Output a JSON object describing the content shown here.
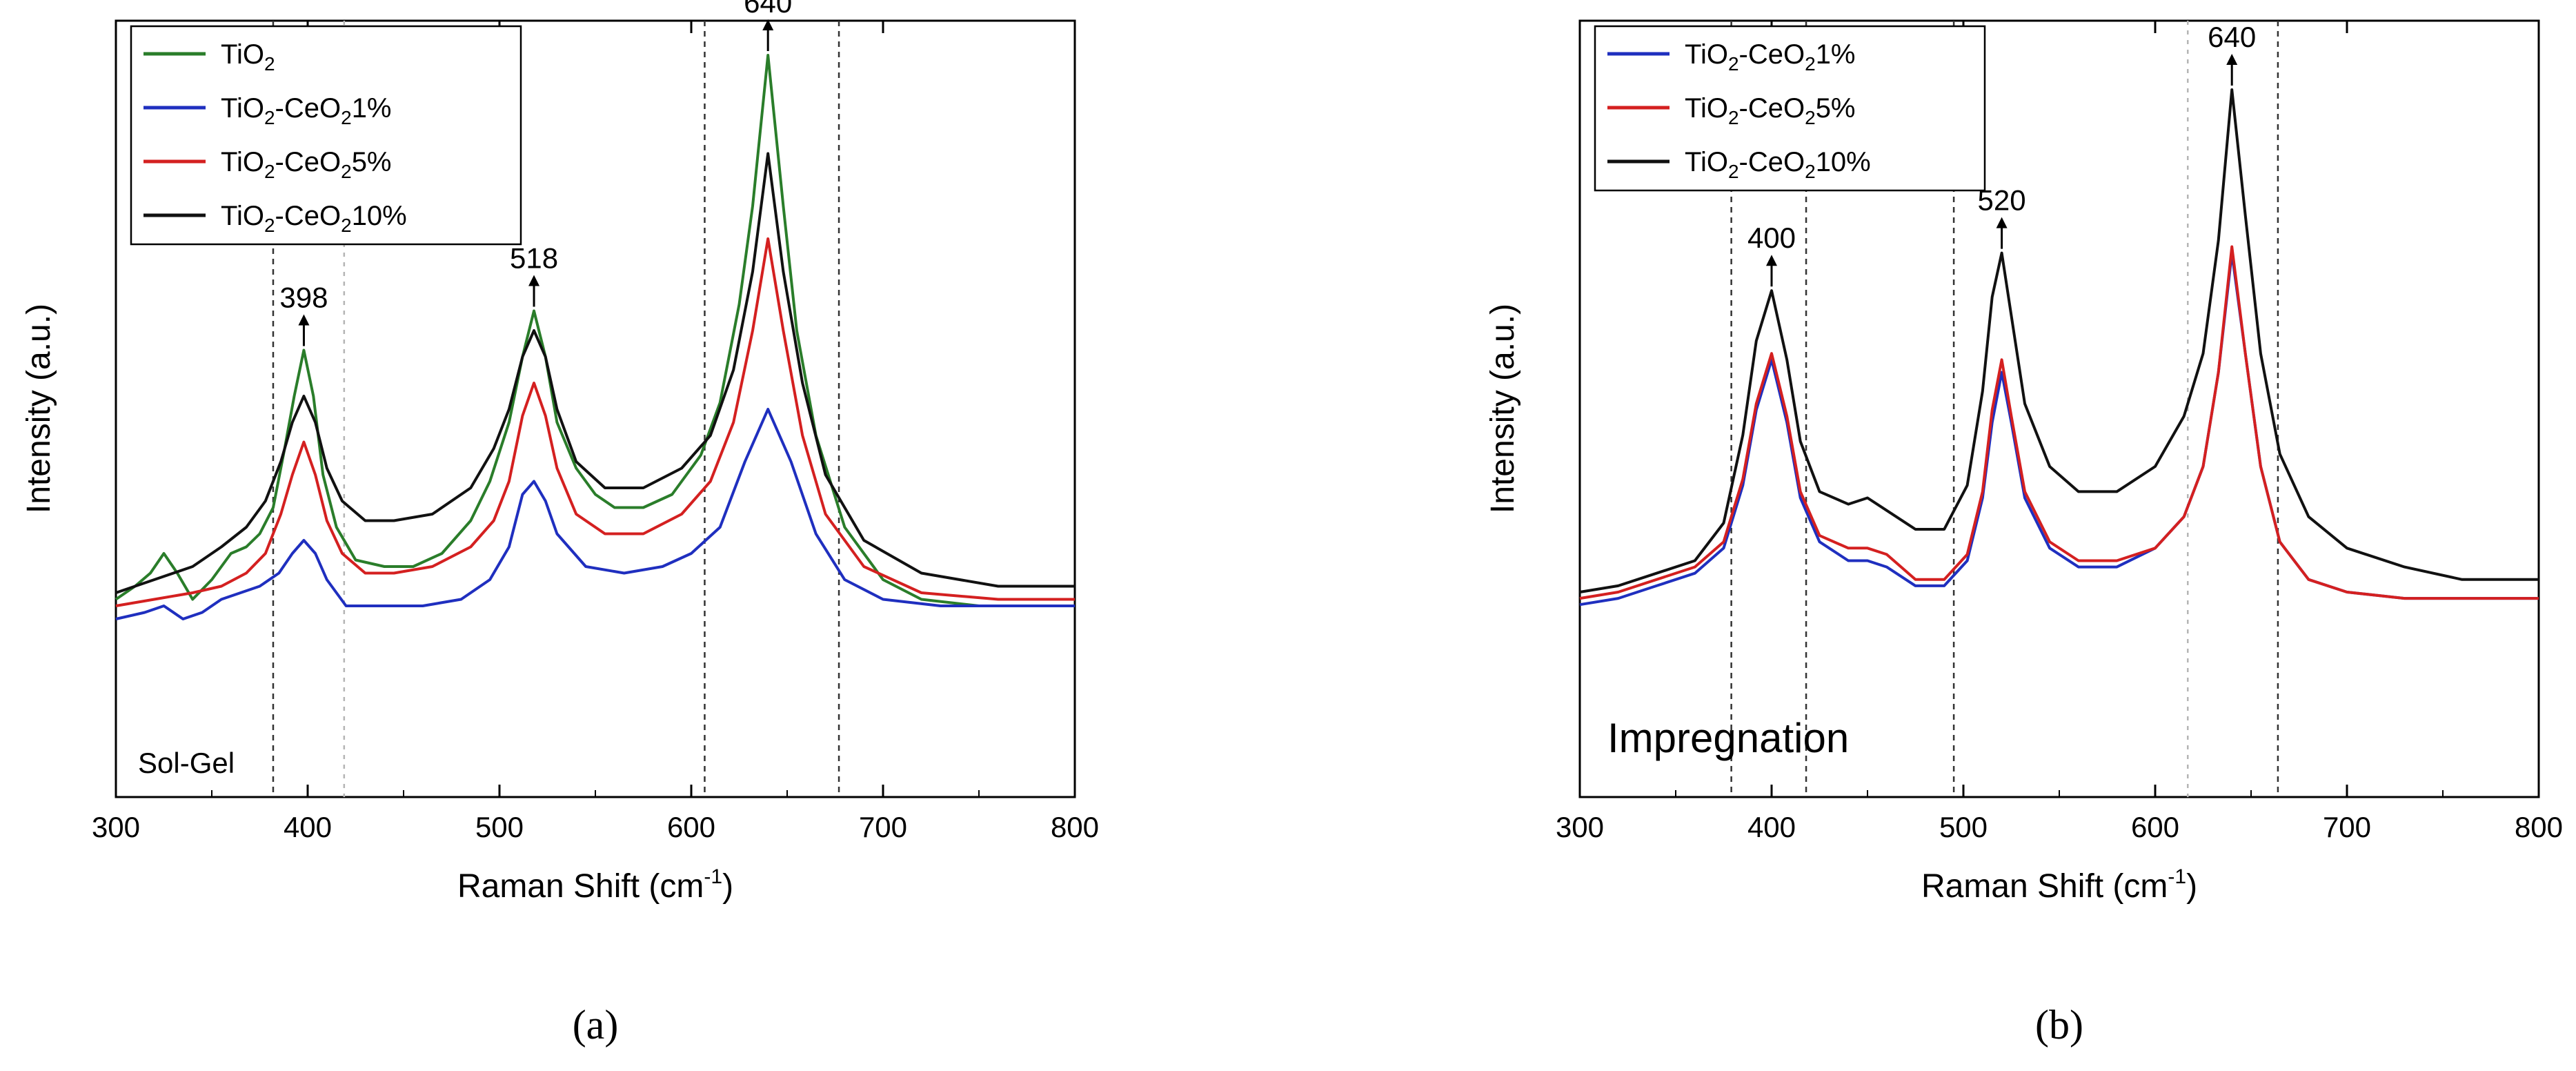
{
  "chart_data": [
    {
      "type": "line",
      "panel_label": "(a)",
      "annotation": "Sol-Gel",
      "xlabel": "Raman Shift (cm",
      "xlabel_sup": "-1",
      "xlabel_tail": ")",
      "ylabel": "Intensity (a.u.)",
      "xlim": [
        300,
        800
      ],
      "ylim": [
        0,
        100
      ],
      "xticks": [
        300,
        400,
        500,
        600,
        700,
        800
      ],
      "legend_position": "top-left",
      "series": [
        {
          "name": "TiO2",
          "legend": {
            "base": "TiO",
            "sub1": "2",
            "mid": "",
            "sub2": "",
            "tail": ""
          },
          "color": "#2a7d2a",
          "x": [
            300,
            310,
            318,
            325,
            332,
            340,
            350,
            360,
            368,
            375,
            382,
            388,
            393,
            398,
            403,
            408,
            415,
            425,
            440,
            455,
            470,
            485,
            495,
            505,
            512,
            518,
            524,
            530,
            540,
            550,
            560,
            575,
            590,
            605,
            615,
            625,
            632,
            640,
            648,
            655,
            665,
            680,
            700,
            720,
            750,
            780,
            800
          ],
          "y": [
            17,
            19,
            21,
            24,
            21,
            17,
            20,
            24,
            25,
            27,
            31,
            40,
            48,
            55,
            48,
            36,
            28,
            23,
            22,
            22,
            24,
            29,
            35,
            44,
            54,
            61,
            54,
            44,
            37,
            33,
            31,
            31,
            33,
            39,
            47,
            62,
            77,
            100,
            77,
            58,
            42,
            28,
            20,
            17,
            16,
            16,
            16
          ]
        },
        {
          "name": "TiO2-CeO21%",
          "legend": {
            "base": "TiO",
            "sub1": "2",
            "mid": "-CeO",
            "sub2": "2",
            "tail": "1%"
          },
          "color": "#1f2fbf",
          "x": [
            300,
            315,
            325,
            335,
            345,
            355,
            365,
            375,
            385,
            392,
            398,
            404,
            410,
            420,
            440,
            460,
            480,
            495,
            505,
            512,
            518,
            524,
            530,
            545,
            565,
            585,
            600,
            615,
            628,
            640,
            652,
            665,
            680,
            700,
            730,
            760,
            800
          ],
          "y": [
            14,
            15,
            16,
            14,
            15,
            17,
            18,
            19,
            21,
            24,
            26,
            24,
            20,
            16,
            16,
            16,
            17,
            20,
            25,
            33,
            35,
            32,
            27,
            22,
            21,
            22,
            24,
            28,
            38,
            46,
            38,
            27,
            20,
            17,
            16,
            16,
            16
          ]
        },
        {
          "name": "TiO2-CeO25%",
          "legend": {
            "base": "TiO",
            "sub1": "2",
            "mid": "-CeO",
            "sub2": "2",
            "tail": "5%"
          },
          "color": "#d42020",
          "x": [
            300,
            320,
            340,
            355,
            368,
            378,
            386,
            392,
            398,
            404,
            410,
            418,
            430,
            445,
            465,
            485,
            497,
            505,
            512,
            518,
            524,
            530,
            540,
            555,
            575,
            595,
            610,
            622,
            632,
            640,
            648,
            658,
            670,
            690,
            720,
            760,
            800
          ],
          "y": [
            16,
            17,
            18,
            19,
            21,
            24,
            30,
            36,
            41,
            36,
            29,
            24,
            21,
            21,
            22,
            25,
            29,
            35,
            45,
            50,
            45,
            37,
            30,
            27,
            27,
            30,
            35,
            44,
            58,
            72,
            58,
            42,
            30,
            22,
            18,
            17,
            17
          ]
        },
        {
          "name": "TiO2-CeO210%",
          "legend": {
            "base": "TiO",
            "sub1": "2",
            "mid": "-CeO",
            "sub2": "2",
            "tail": "10%"
          },
          "color": "#111111",
          "x": [
            300,
            320,
            340,
            355,
            368,
            378,
            386,
            392,
            398,
            404,
            410,
            418,
            430,
            445,
            465,
            485,
            497,
            505,
            512,
            518,
            524,
            530,
            540,
            555,
            575,
            595,
            610,
            622,
            632,
            640,
            648,
            658,
            670,
            690,
            720,
            760,
            800
          ],
          "y": [
            18,
            20,
            22,
            25,
            28,
            32,
            38,
            44,
            48,
            44,
            37,
            32,
            29,
            29,
            30,
            34,
            40,
            46,
            54,
            58,
            54,
            46,
            38,
            34,
            34,
            37,
            42,
            52,
            67,
            85,
            67,
            50,
            36,
            26,
            21,
            19,
            19
          ]
        }
      ],
      "peak_labels": [
        {
          "x": 398,
          "y": 55,
          "label": "398"
        },
        {
          "x": 518,
          "y": 61,
          "label": "518"
        },
        {
          "x": 640,
          "y": 100,
          "label": "640"
        }
      ],
      "reference_lines": [
        {
          "x": 382,
          "style": "dark"
        },
        {
          "x": 419,
          "style": "light"
        },
        {
          "x": 607,
          "style": "dark"
        },
        {
          "x": 677,
          "style": "dark"
        }
      ]
    },
    {
      "type": "line",
      "panel_label": "(b)",
      "annotation": "Impregnation",
      "xlabel": "Raman Shift (cm",
      "xlabel_sup": "-1",
      "xlabel_tail": ")",
      "ylabel": "Intensity (a.u.)",
      "xlim": [
        300,
        800
      ],
      "ylim": [
        0,
        100
      ],
      "xticks": [
        300,
        400,
        500,
        600,
        700,
        800
      ],
      "legend_position": "top-left",
      "series": [
        {
          "name": "TiO2-CeO21%",
          "legend": {
            "base": "TiO",
            "sub1": "2",
            "mid": "-CeO",
            "sub2": "2",
            "tail": "1%"
          },
          "color": "#1f2fbf",
          "x": [
            300,
            320,
            340,
            360,
            375,
            385,
            392,
            400,
            408,
            415,
            425,
            440,
            450,
            460,
            475,
            490,
            502,
            510,
            515,
            520,
            525,
            532,
            545,
            560,
            580,
            600,
            615,
            625,
            633,
            640,
            647,
            655,
            665,
            680,
            700,
            730,
            760,
            800
          ],
          "y": [
            18,
            19,
            21,
            23,
            27,
            37,
            49,
            57,
            47,
            35,
            28,
            25,
            25,
            24,
            21,
            21,
            25,
            35,
            47,
            55,
            47,
            35,
            27,
            24,
            24,
            27,
            32,
            40,
            55,
            74,
            58,
            40,
            28,
            22,
            20,
            19,
            19,
            19
          ]
        },
        {
          "name": "TiO2-CeO25%",
          "legend": {
            "base": "TiO",
            "sub1": "2",
            "mid": "-CeO",
            "sub2": "2",
            "tail": "5%"
          },
          "color": "#d42020",
          "x": [
            300,
            320,
            340,
            360,
            375,
            385,
            392,
            400,
            408,
            415,
            425,
            440,
            450,
            460,
            475,
            490,
            502,
            510,
            515,
            520,
            525,
            532,
            545,
            560,
            580,
            600,
            615,
            625,
            633,
            640,
            647,
            655,
            665,
            680,
            700,
            730,
            760,
            800
          ],
          "y": [
            19,
            20,
            22,
            24,
            28,
            38,
            50,
            58,
            48,
            36,
            29,
            27,
            27,
            26,
            22,
            22,
            26,
            36,
            49,
            57,
            48,
            36,
            28,
            25,
            25,
            27,
            32,
            40,
            55,
            75,
            58,
            40,
            28,
            22,
            20,
            19,
            19,
            19
          ]
        },
        {
          "name": "TiO2-CeO210%",
          "legend": {
            "base": "TiO",
            "sub1": "2",
            "mid": "-CeO",
            "sub2": "2",
            "tail": "10%"
          },
          "color": "#111111",
          "x": [
            300,
            320,
            340,
            360,
            375,
            385,
            392,
            400,
            408,
            415,
            425,
            440,
            450,
            460,
            475,
            490,
            502,
            510,
            515,
            520,
            525,
            532,
            545,
            560,
            580,
            600,
            615,
            625,
            633,
            640,
            647,
            655,
            665,
            680,
            700,
            730,
            760,
            800
          ],
          "y": [
            20,
            21,
            23,
            25,
            31,
            45,
            60,
            68,
            57,
            44,
            36,
            34,
            35,
            33,
            30,
            30,
            37,
            52,
            67,
            74,
            64,
            50,
            40,
            36,
            36,
            40,
            48,
            58,
            76,
            100,
            80,
            58,
            42,
            32,
            27,
            24,
            22,
            22
          ]
        }
      ],
      "peak_labels": [
        {
          "x": 400,
          "y": 68,
          "label": "400"
        },
        {
          "x": 520,
          "y": 74,
          "label": "520"
        },
        {
          "x": 640,
          "y": 100,
          "label": "640"
        }
      ],
      "reference_lines": [
        {
          "x": 379,
          "style": "dark"
        },
        {
          "x": 418,
          "style": "dark"
        },
        {
          "x": 495,
          "style": "dark"
        },
        {
          "x": 617,
          "style": "light"
        },
        {
          "x": 664,
          "style": "dark"
        }
      ]
    }
  ]
}
